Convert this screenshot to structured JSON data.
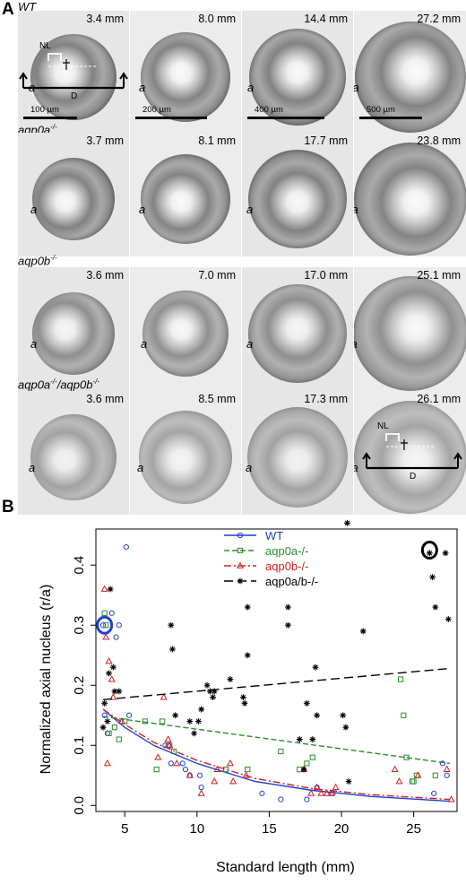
{
  "panel_a": {
    "label": "A",
    "rows": [
      {
        "genotype": "WT",
        "cells": [
          {
            "size": "3.4 mm",
            "a_label": "a",
            "scale": "100 µm"
          },
          {
            "size": "8.0 mm",
            "a_label": "a",
            "scale": "200 µm"
          },
          {
            "size": "14.4 mm",
            "a_label": "a",
            "scale": "400 µm"
          },
          {
            "size": "27.2 mm",
            "a_label": "a",
            "scale": "500 µm"
          }
        ],
        "nl_label": "NL",
        "d_label": "D"
      },
      {
        "genotype": "aqp0a",
        "genotype_sup": "-/-",
        "cells": [
          {
            "size": "3.7 mm",
            "a_label": "a"
          },
          {
            "size": "8.1 mm",
            "a_label": "a"
          },
          {
            "size": "17.7 mm",
            "a_label": "a"
          },
          {
            "size": "23.8 mm",
            "a_label": "a"
          }
        ]
      },
      {
        "genotype": "aqp0b",
        "genotype_sup": "-/-",
        "cells": [
          {
            "size": "3.6 mm",
            "a_label": "a"
          },
          {
            "size": "7.0 mm",
            "a_label": "a"
          },
          {
            "size": "17.0 mm",
            "a_label": "a"
          },
          {
            "size": "25.1 mm",
            "a_label": "a"
          }
        ]
      },
      {
        "genotype": "aqp0a",
        "genotype_sup": "-/-",
        "genotype_2": "/aqp0b",
        "genotype_2_sup": "-/-",
        "cells": [
          {
            "size": "3.6 mm",
            "a_label": "a"
          },
          {
            "size": "8.5 mm",
            "a_label": "a"
          },
          {
            "size": "17.3 mm",
            "a_label": "a"
          },
          {
            "size": "26.1 mm",
            "a_label": "a"
          }
        ],
        "nl_label": "NL",
        "d_label": "D"
      }
    ]
  },
  "panel_b": {
    "label": "B"
  },
  "colors": {
    "WT": "#1f3fd1",
    "aqp0a": "#2e8b2e",
    "aqp0b": "#d11f1f",
    "aqp0ab": "#000000"
  },
  "chart_data": {
    "type": "scatter",
    "xlabel": "Standard length (mm)",
    "ylabel": "Normalized axial nucleus (r/a)",
    "xlim": [
      3,
      28
    ],
    "ylim": [
      -0.01,
      0.46
    ],
    "xticks": [
      5,
      10,
      15,
      20,
      25
    ],
    "yticks": [
      0.0,
      0.1,
      0.2,
      0.3,
      0.4
    ],
    "legend_position": "top-right",
    "series": [
      {
        "name": "WT",
        "marker": "circle",
        "line": "solid",
        "points": [
          [
            3.5,
            0.3
          ],
          [
            3.6,
            0.15
          ],
          [
            3.8,
            0.12
          ],
          [
            4.1,
            0.32
          ],
          [
            4.4,
            0.28
          ],
          [
            4.6,
            0.3
          ],
          [
            5.1,
            0.43
          ],
          [
            5.3,
            0.15
          ],
          [
            7.8,
            0.1
          ],
          [
            8.0,
            0.1
          ],
          [
            8.2,
            0.07
          ],
          [
            9.0,
            0.07
          ],
          [
            9.2,
            0.06
          ],
          [
            9.5,
            0.05
          ],
          [
            10.2,
            0.05
          ],
          [
            10.3,
            0.03
          ],
          [
            14.5,
            0.02
          ],
          [
            15.8,
            0.01
          ],
          [
            17.6,
            0.01
          ],
          [
            18.3,
            0.03
          ],
          [
            19.4,
            0.02
          ],
          [
            26.4,
            0.02
          ],
          [
            27.0,
            0.07
          ],
          [
            27.3,
            0.05
          ]
        ],
        "fit": [
          [
            3.5,
            0.16
          ],
          [
            5,
            0.13
          ],
          [
            7,
            0.1
          ],
          [
            10,
            0.07
          ],
          [
            14,
            0.04
          ],
          [
            18,
            0.025
          ],
          [
            22,
            0.015
          ],
          [
            27.5,
            0.007
          ]
        ]
      },
      {
        "name": "aqp0a-/-",
        "marker": "square",
        "line": "dashed",
        "points": [
          [
            3.6,
            0.32
          ],
          [
            3.7,
            0.3
          ],
          [
            3.9,
            0.12
          ],
          [
            4.3,
            0.13
          ],
          [
            4.6,
            0.11
          ],
          [
            5.0,
            0.14
          ],
          [
            6.4,
            0.14
          ],
          [
            7.2,
            0.06
          ],
          [
            7.6,
            0.14
          ],
          [
            8.1,
            0.1
          ],
          [
            8.4,
            0.09
          ],
          [
            12.0,
            0.06
          ],
          [
            13.5,
            0.06
          ],
          [
            15.8,
            0.09
          ],
          [
            17.1,
            0.06
          ],
          [
            17.6,
            0.07
          ],
          [
            18.0,
            0.08
          ],
          [
            24.1,
            0.21
          ],
          [
            24.3,
            0.15
          ],
          [
            24.5,
            0.08
          ],
          [
            24.9,
            0.04
          ],
          [
            25.0,
            0.04
          ],
          [
            25.2,
            0.05
          ],
          [
            26.5,
            0.05
          ]
        ],
        "fit": [
          [
            3.5,
            0.148
          ],
          [
            27.5,
            0.07
          ]
        ]
      },
      {
        "name": "aqp0b-/-",
        "marker": "triangle",
        "line": "dashdot",
        "points": [
          [
            3.6,
            0.36
          ],
          [
            3.7,
            0.28
          ],
          [
            3.8,
            0.07
          ],
          [
            3.9,
            0.24
          ],
          [
            4.1,
            0.21
          ],
          [
            4.2,
            0.18
          ],
          [
            4.8,
            0.14
          ],
          [
            7.3,
            0.08
          ],
          [
            7.7,
            0.18
          ],
          [
            8.0,
            0.11
          ],
          [
            8.1,
            0.1
          ],
          [
            8.6,
            0.07
          ],
          [
            9.5,
            0.05
          ],
          [
            10.3,
            0.02
          ],
          [
            11.2,
            0.04
          ],
          [
            11.4,
            0.06
          ],
          [
            12.3,
            0.07
          ],
          [
            12.5,
            0.04
          ],
          [
            13.4,
            0.05
          ],
          [
            17.4,
            0.06
          ],
          [
            17.9,
            0.02
          ],
          [
            18.3,
            0.03
          ],
          [
            18.6,
            0.02
          ],
          [
            19.0,
            0.02
          ],
          [
            19.3,
            0.02
          ],
          [
            19.6,
            0.03
          ],
          [
            23.7,
            0.06
          ],
          [
            24.0,
            0.04
          ],
          [
            25.3,
            0.05
          ],
          [
            27.3,
            0.06
          ],
          [
            27.6,
            0.01
          ]
        ],
        "fit": [
          [
            3.5,
            0.16
          ],
          [
            5,
            0.135
          ],
          [
            7,
            0.105
          ],
          [
            10,
            0.075
          ],
          [
            14,
            0.045
          ],
          [
            18,
            0.028
          ],
          [
            22,
            0.018
          ],
          [
            27.5,
            0.01
          ]
        ]
      },
      {
        "name": "aqp0a/b-/-",
        "marker": "star",
        "line": "longdash",
        "points": [
          [
            3.5,
            0.13
          ],
          [
            3.6,
            0.17
          ],
          [
            3.8,
            0.14
          ],
          [
            3.9,
            0.22
          ],
          [
            4.0,
            0.36
          ],
          [
            4.2,
            0.23
          ],
          [
            4.3,
            0.19
          ],
          [
            4.6,
            0.19
          ],
          [
            8.2,
            0.3
          ],
          [
            8.3,
            0.26
          ],
          [
            8.5,
            0.15
          ],
          [
            9.5,
            0.14
          ],
          [
            9.8,
            0.12
          ],
          [
            10.1,
            0.14
          ],
          [
            10.3,
            0.16
          ],
          [
            10.7,
            0.2
          ],
          [
            10.9,
            0.19
          ],
          [
            11.1,
            0.18
          ],
          [
            11.2,
            0.19
          ],
          [
            12.3,
            0.21
          ],
          [
            13.2,
            0.18
          ],
          [
            13.3,
            0.17
          ],
          [
            13.5,
            0.33
          ],
          [
            13.5,
            0.25
          ],
          [
            16.3,
            0.33
          ],
          [
            16.3,
            0.3
          ],
          [
            17.1,
            0.11
          ],
          [
            17.4,
            0.06
          ],
          [
            17.6,
            0.17
          ],
          [
            18.0,
            0.11
          ],
          [
            18.2,
            0.23
          ],
          [
            18.3,
            0.15
          ],
          [
            20.1,
            0.15
          ],
          [
            20.3,
            0.13
          ],
          [
            20.4,
            0.47
          ],
          [
            20.5,
            0.04
          ],
          [
            21.5,
            0.29
          ],
          [
            26.1,
            0.42
          ],
          [
            26.3,
            0.38
          ],
          [
            26.5,
            0.33
          ],
          [
            27.2,
            0.42
          ],
          [
            27.4,
            0.31
          ]
        ],
        "fit": [
          [
            3.5,
            0.176
          ],
          [
            27.5,
            0.228
          ]
        ]
      }
    ],
    "highlights": [
      {
        "series": "WT",
        "x": 3.6,
        "y": 0.3
      },
      {
        "series": "aqp0a/b-/-",
        "x": 26.1,
        "y": 0.425
      }
    ]
  }
}
